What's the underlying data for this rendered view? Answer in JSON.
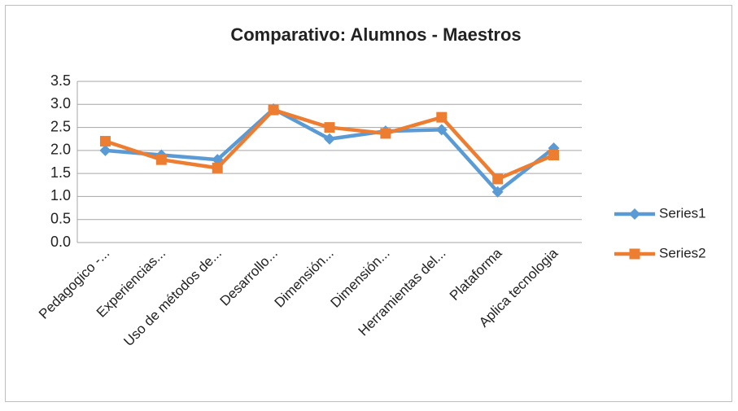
{
  "chart_data": {
    "type": "line",
    "title": "Comparativo: Alumnos - Maestros",
    "categories": [
      "Pedagogico -...",
      "Experiencias...",
      "Uso de métodos de...",
      "Desarrollo...",
      "Dimensión...",
      "Dimensión...",
      "Herramientas del...",
      "Plataforma",
      "Aplica tecnologia"
    ],
    "series": [
      {
        "name": "Series1",
        "color": "#5b9bd5",
        "values": [
          2.0,
          1.9,
          1.8,
          2.9,
          2.25,
          2.42,
          2.45,
          1.1,
          2.05
        ]
      },
      {
        "name": "Series2",
        "color": "#ed7d31",
        "values": [
          2.2,
          1.8,
          1.62,
          2.88,
          2.5,
          2.37,
          2.72,
          1.38,
          1.9
        ]
      }
    ],
    "ylim": [
      0,
      3.5
    ],
    "yticks": [
      {
        "value": 0,
        "label": "0.0"
      },
      0.5,
      {
        "value": 1,
        "label": "1.0"
      },
      1.5,
      {
        "value": 2,
        "label": "2.0"
      },
      2.5,
      {
        "value": 3,
        "label": "3.0"
      },
      3.5
    ],
    "grid": true,
    "legend": "right"
  }
}
